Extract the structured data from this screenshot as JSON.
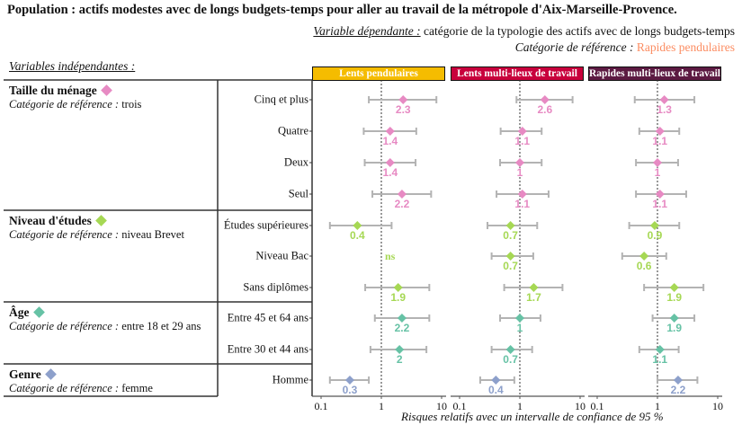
{
  "title": "Population : actifs modestes avec de longs budgets-temps pour aller au travail de la métropole d'Aix-Marseille-Provence.",
  "dependent": {
    "label": "Variable dépendante :",
    "value": " catégorie de la typologie des actifs avec de longs budgets-temps"
  },
  "reference": {
    "label": "Catégorie de référence :",
    "value": " Rapides pendulaires"
  },
  "independent_label": "Variables indépendantes :",
  "colors": {
    "reference": "#fc8d62",
    "pink": "#e78ac3",
    "green": "#a6d854",
    "teal": "#66c2a5",
    "blue": "#8da0cb",
    "ci": "#b3b3b3"
  },
  "groups": [
    {
      "title": "Taille du ménage",
      "ref_label": "Catégorie de référence :",
      "ref_value": " trois",
      "color": "#e78ac3"
    },
    {
      "title": "Niveau d'études",
      "ref_label": "Catégorie de référence :",
      "ref_value": " niveau Brevet",
      "color": "#a6d854"
    },
    {
      "title": "Âge",
      "ref_label": "Catégorie de référence :",
      "ref_value": " entre 18 et 29 ans",
      "color": "#66c2a5"
    },
    {
      "title": "Genre",
      "ref_label": "Catégorie de référence :",
      "ref_value": " femme",
      "color": "#8da0cb"
    }
  ],
  "chart_data": {
    "type": "forest",
    "xscale": "log10",
    "xlim": [
      0.1,
      10
    ],
    "xticks": [
      "0.1",
      "1",
      "10"
    ],
    "xlabel": "Risques relatifs avec un intervalle de confiance de 95 %",
    "reference_line": 1,
    "ns_label": "ns",
    "panels": [
      {
        "name": "Lents pendulaires",
        "color": "#f5bc00"
      },
      {
        "name": "Lents multi-lieux de travail",
        "color": "#c8003c"
      },
      {
        "name": "Rapides multi-lieux de travail",
        "color": "#5c1a42"
      }
    ],
    "rows": [
      {
        "label": "Cinq et plus",
        "group": 0,
        "values": [
          {
            "or": 2.3,
            "lo": 0.62,
            "hi": 8.2
          },
          {
            "or": 2.6,
            "lo": 0.88,
            "hi": 7.5
          },
          {
            "or": 1.3,
            "lo": 0.42,
            "hi": 4.1
          }
        ]
      },
      {
        "label": "Quatre",
        "group": 0,
        "values": [
          {
            "or": 1.4,
            "lo": 0.51,
            "hi": 3.8
          },
          {
            "or": 1.1,
            "lo": 0.48,
            "hi": 2.3
          },
          {
            "or": 1.1,
            "lo": 0.5,
            "hi": 2.3
          }
        ]
      },
      {
        "label": "Deux",
        "group": 0,
        "values": [
          {
            "or": 1.4,
            "lo": 0.53,
            "hi": 3.7
          },
          {
            "or": 1,
            "lo": 0.47,
            "hi": 2.3
          },
          {
            "or": 1,
            "lo": 0.44,
            "hi": 2.2
          }
        ]
      },
      {
        "label": "Seul",
        "group": 0,
        "values": [
          {
            "or": 2.2,
            "lo": 0.71,
            "hi": 6.7
          },
          {
            "or": 1.1,
            "lo": 0.41,
            "hi": 3.0
          },
          {
            "or": 1.1,
            "lo": 0.44,
            "hi": 3.0
          }
        ]
      },
      {
        "label": "Études supérieures",
        "group": 1,
        "values": [
          {
            "or": 0.4,
            "lo": 0.14,
            "hi": 1.48
          },
          {
            "or": 0.7,
            "lo": 0.29,
            "hi": 1.94
          },
          {
            "or": 0.9,
            "lo": 0.34,
            "hi": 2.3
          }
        ]
      },
      {
        "label": "Niveau Bac",
        "group": 1,
        "values": [
          null,
          {
            "or": 0.7,
            "lo": 0.34,
            "hi": 1.67
          },
          {
            "or": 0.6,
            "lo": 0.26,
            "hi": 1.4
          }
        ]
      },
      {
        "label": "Sans diplômes",
        "group": 1,
        "values": [
          {
            "or": 1.9,
            "lo": 0.54,
            "hi": 6.25
          },
          {
            "or": 1.7,
            "lo": 0.55,
            "hi": 5.1
          },
          {
            "or": 1.9,
            "lo": 0.6,
            "hi": 5.8
          }
        ]
      },
      {
        "label": "Entre 45 et 64 ans",
        "group": 2,
        "values": [
          {
            "or": 2.2,
            "lo": 0.78,
            "hi": 6.25
          },
          {
            "or": 1,
            "lo": 0.47,
            "hi": 2.2
          },
          {
            "or": 1.9,
            "lo": 0.83,
            "hi": 4.1
          }
        ]
      },
      {
        "label": "Entre 30 et 44 ans",
        "group": 2,
        "values": [
          {
            "or": 2,
            "lo": 0.66,
            "hi": 5.6
          },
          {
            "or": 0.7,
            "lo": 0.34,
            "hi": 1.6
          },
          {
            "or": 1.1,
            "lo": 0.5,
            "hi": 2.25
          }
        ]
      },
      {
        "label": "Homme",
        "group": 3,
        "values": [
          {
            "or": 0.3,
            "lo": 0.14,
            "hi": 0.62
          },
          {
            "or": 0.4,
            "lo": 0.22,
            "hi": 0.81
          },
          {
            "or": 2.2,
            "lo": 1.0,
            "hi": 4.6
          }
        ]
      }
    ]
  }
}
